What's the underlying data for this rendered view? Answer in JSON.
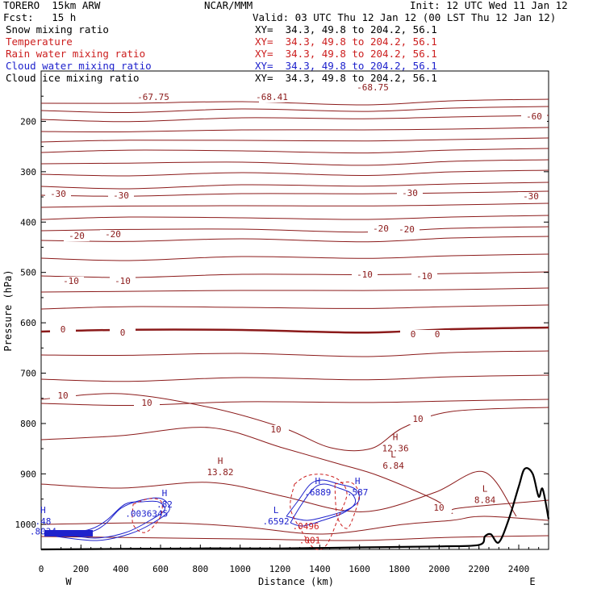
{
  "header": {
    "model": "TORERO  15km ARW",
    "org": "NCAR/MMM",
    "init": "Init: 12 UTC Wed 11 Jan 12",
    "fcst": "Fcst:   15 h",
    "valid": "Valid: 03 UTC Thu 12 Jan 12 (00 LST Thu 12 Jan 12)"
  },
  "fields": [
    {
      "name": "Snow mixing ratio",
      "xy": "XY=  34.3, 49.8 to 204.2, 56.1",
      "color": "#000000"
    },
    {
      "name": "Temperature",
      "xy": "XY=  34.3, 49.8 to 204.2, 56.1",
      "color": "#cc1e1e"
    },
    {
      "name": "Rain water mixing ratio",
      "xy": "XY=  34.3, 49.8 to 204.2, 56.1",
      "color": "#cc1e1e"
    },
    {
      "name": "Cloud water mixing ratio",
      "xy": "XY=  34.3, 49.8 to 204.2, 56.1",
      "color": "#1e22cc"
    },
    {
      "name": "Cloud ice mixing ratio",
      "xy": "XY=  34.3, 49.8 to 204.2, 56.1",
      "color": "#000000"
    }
  ],
  "chart_data": {
    "type": "contour cross-section",
    "xlabel": "Distance (km)",
    "ylabel": "Pressure (hPa)",
    "xlim": [
      0,
      2550
    ],
    "ylim": [
      1050,
      100
    ],
    "x_ticks": [
      0,
      200,
      400,
      600,
      800,
      1000,
      1200,
      1400,
      1600,
      1800,
      2000,
      2200,
      2400
    ],
    "y_ticks": [
      200,
      300,
      400,
      500,
      600,
      700,
      800,
      900,
      1000
    ],
    "x_end_labels": {
      "left": "W",
      "right": "E"
    },
    "temperature_contours": [
      {
        "value": -67.75,
        "label": "-67.75"
      },
      {
        "value": -68.41,
        "label": "-68.41"
      },
      {
        "value": -68.75,
        "label": "-68.75"
      },
      {
        "value": -60,
        "label": "-60"
      },
      {
        "value": -30,
        "label": "-30"
      },
      {
        "value": -20,
        "label": "-20"
      },
      {
        "value": -10,
        "label": "-10"
      },
      {
        "value": 0,
        "label": "0"
      },
      {
        "value": 10,
        "label": "10"
      }
    ],
    "extrema_labels": [
      {
        "mark": "H",
        "value": "13.82",
        "x_km": 900,
        "p": 903,
        "color": "#8b1a1a"
      },
      {
        "mark": "H",
        "value": "12.36",
        "x_km": 1780,
        "p": 855,
        "color": "#8b1a1a"
      },
      {
        "mark": "L",
        "value": "6.84",
        "x_km": 1770,
        "p": 890,
        "color": "#8b1a1a"
      },
      {
        "mark": "L",
        "value": "8.84",
        "x_km": 2230,
        "p": 958,
        "color": "#8b1a1a"
      },
      {
        "mark": "H",
        "value": ".82",
        "x_km": 620,
        "p": 967,
        "color": "#1e22cc"
      },
      {
        "mark": "H",
        "value": ".6889",
        "x_km": 1390,
        "p": 943,
        "color": "#1e22cc"
      },
      {
        "mark": "H",
        "value": ".587",
        "x_km": 1590,
        "p": 943,
        "color": "#1e22cc"
      },
      {
        "mark": "L",
        "value": ".6592",
        "x_km": 1180,
        "p": 1000,
        "color": "#1e22cc"
      },
      {
        "mark": "H",
        "value": ".48",
        "x_km": 10,
        "p": 1000,
        "color": "#1e22cc"
      },
      {
        "mark": "",
        "value": ".8034",
        "x_km": 10,
        "p": 1020,
        "color": "#1e22cc"
      },
      {
        "mark": "",
        "value": ".0036345",
        "x_km": 530,
        "p": 985,
        "color": "#1e22cc"
      },
      {
        "mark": "",
        "value": ".0496",
        "x_km": 1330,
        "p": 1010,
        "color": "#cc1e1e"
      },
      {
        "mark": "",
        "value": ".001",
        "x_km": 1350,
        "p": 1038,
        "color": "#cc1e1e"
      }
    ],
    "terrain": [
      [
        0,
        1050
      ],
      [
        400,
        1049
      ],
      [
        800,
        1048
      ],
      [
        1200,
        1048
      ],
      [
        1600,
        1046
      ],
      [
        2000,
        1044
      ],
      [
        2200,
        1041
      ],
      [
        2230,
        1024
      ],
      [
        2260,
        1020
      ],
      [
        2300,
        1036
      ],
      [
        2350,
        990
      ],
      [
        2400,
        925
      ],
      [
        2430,
        890
      ],
      [
        2470,
        900
      ],
      [
        2500,
        945
      ],
      [
        2520,
        930
      ],
      [
        2550,
        990
      ]
    ]
  }
}
